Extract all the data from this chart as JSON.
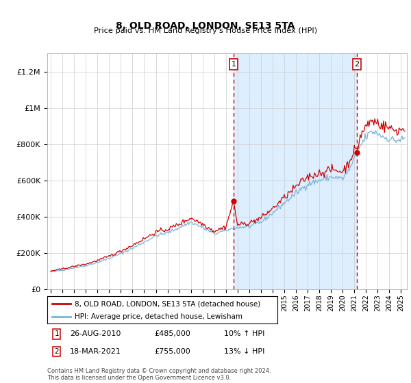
{
  "title": "8, OLD ROAD, LONDON, SE13 5TA",
  "subtitle": "Price paid vs. HM Land Registry's House Price Index (HPI)",
  "ylabel_ticks": [
    "£0",
    "£200K",
    "£400K",
    "£600K",
    "£800K",
    "£1M",
    "£1.2M"
  ],
  "ytick_values": [
    0,
    200000,
    400000,
    600000,
    800000,
    1000000,
    1200000
  ],
  "ylim": [
    0,
    1300000
  ],
  "legend_line1": "8, OLD ROAD, LONDON, SE13 5TA (detached house)",
  "legend_line2": "HPI: Average price, detached house, Lewisham",
  "annotation1_label": "1",
  "annotation1_date": "26-AUG-2010",
  "annotation1_price": "£485,000",
  "annotation1_hpi": "10% ↑ HPI",
  "annotation2_label": "2",
  "annotation2_date": "18-MAR-2021",
  "annotation2_price": "£755,000",
  "annotation2_hpi": "13% ↓ HPI",
  "copyright": "Contains HM Land Registry data © Crown copyright and database right 2024.\nThis data is licensed under the Open Government Licence v3.0.",
  "hpi_line_color": "#7bb3d9",
  "price_color": "#cc0000",
  "vline_color": "#cc0000",
  "shade_color": "#ddeeff",
  "sale1_year": 2010.65,
  "sale1_y": 485000,
  "sale2_year": 2021.21,
  "sale2_y": 755000,
  "xlim_start": 1994.7,
  "xlim_end": 2025.5
}
